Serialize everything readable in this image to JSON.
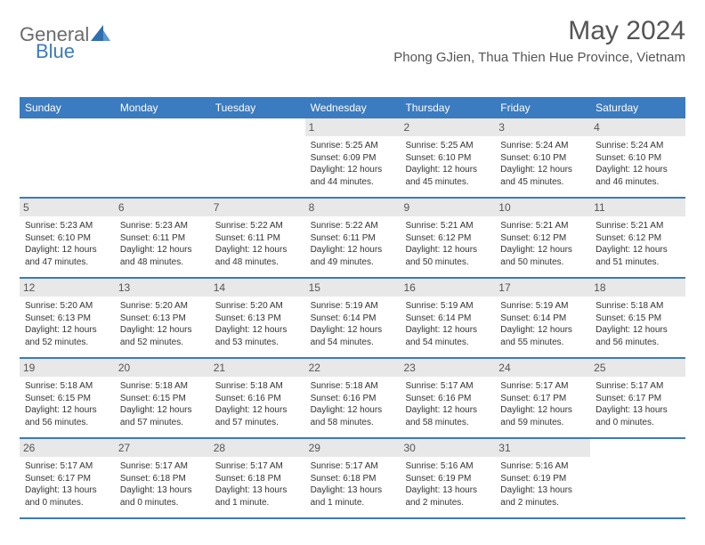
{
  "logo": {
    "part1": "General",
    "part2": "Blue"
  },
  "title": "May 2024",
  "location": "Phong GJien, Thua Thien Hue Province, Vietnam",
  "colors": {
    "header_bg": "#3b7bbf",
    "header_text": "#ffffff",
    "daynum_bg": "#e8e8e8",
    "body_text": "#333333",
    "logo_gray": "#6b6b6b",
    "logo_blue": "#3b7bbf"
  },
  "day_headers": [
    "Sunday",
    "Monday",
    "Tuesday",
    "Wednesday",
    "Thursday",
    "Friday",
    "Saturday"
  ],
  "weeks": [
    [
      {
        "blank": true
      },
      {
        "blank": true
      },
      {
        "blank": true
      },
      {
        "n": "1",
        "sunrise": "Sunrise: 5:25 AM",
        "sunset": "Sunset: 6:09 PM",
        "d1": "Daylight: 12 hours",
        "d2": "and 44 minutes."
      },
      {
        "n": "2",
        "sunrise": "Sunrise: 5:25 AM",
        "sunset": "Sunset: 6:10 PM",
        "d1": "Daylight: 12 hours",
        "d2": "and 45 minutes."
      },
      {
        "n": "3",
        "sunrise": "Sunrise: 5:24 AM",
        "sunset": "Sunset: 6:10 PM",
        "d1": "Daylight: 12 hours",
        "d2": "and 45 minutes."
      },
      {
        "n": "4",
        "sunrise": "Sunrise: 5:24 AM",
        "sunset": "Sunset: 6:10 PM",
        "d1": "Daylight: 12 hours",
        "d2": "and 46 minutes."
      }
    ],
    [
      {
        "n": "5",
        "sunrise": "Sunrise: 5:23 AM",
        "sunset": "Sunset: 6:10 PM",
        "d1": "Daylight: 12 hours",
        "d2": "and 47 minutes."
      },
      {
        "n": "6",
        "sunrise": "Sunrise: 5:23 AM",
        "sunset": "Sunset: 6:11 PM",
        "d1": "Daylight: 12 hours",
        "d2": "and 48 minutes."
      },
      {
        "n": "7",
        "sunrise": "Sunrise: 5:22 AM",
        "sunset": "Sunset: 6:11 PM",
        "d1": "Daylight: 12 hours",
        "d2": "and 48 minutes."
      },
      {
        "n": "8",
        "sunrise": "Sunrise: 5:22 AM",
        "sunset": "Sunset: 6:11 PM",
        "d1": "Daylight: 12 hours",
        "d2": "and 49 minutes."
      },
      {
        "n": "9",
        "sunrise": "Sunrise: 5:21 AM",
        "sunset": "Sunset: 6:12 PM",
        "d1": "Daylight: 12 hours",
        "d2": "and 50 minutes."
      },
      {
        "n": "10",
        "sunrise": "Sunrise: 5:21 AM",
        "sunset": "Sunset: 6:12 PM",
        "d1": "Daylight: 12 hours",
        "d2": "and 50 minutes."
      },
      {
        "n": "11",
        "sunrise": "Sunrise: 5:21 AM",
        "sunset": "Sunset: 6:12 PM",
        "d1": "Daylight: 12 hours",
        "d2": "and 51 minutes."
      }
    ],
    [
      {
        "n": "12",
        "sunrise": "Sunrise: 5:20 AM",
        "sunset": "Sunset: 6:13 PM",
        "d1": "Daylight: 12 hours",
        "d2": "and 52 minutes."
      },
      {
        "n": "13",
        "sunrise": "Sunrise: 5:20 AM",
        "sunset": "Sunset: 6:13 PM",
        "d1": "Daylight: 12 hours",
        "d2": "and 52 minutes."
      },
      {
        "n": "14",
        "sunrise": "Sunrise: 5:20 AM",
        "sunset": "Sunset: 6:13 PM",
        "d1": "Daylight: 12 hours",
        "d2": "and 53 minutes."
      },
      {
        "n": "15",
        "sunrise": "Sunrise: 5:19 AM",
        "sunset": "Sunset: 6:14 PM",
        "d1": "Daylight: 12 hours",
        "d2": "and 54 minutes."
      },
      {
        "n": "16",
        "sunrise": "Sunrise: 5:19 AM",
        "sunset": "Sunset: 6:14 PM",
        "d1": "Daylight: 12 hours",
        "d2": "and 54 minutes."
      },
      {
        "n": "17",
        "sunrise": "Sunrise: 5:19 AM",
        "sunset": "Sunset: 6:14 PM",
        "d1": "Daylight: 12 hours",
        "d2": "and 55 minutes."
      },
      {
        "n": "18",
        "sunrise": "Sunrise: 5:18 AM",
        "sunset": "Sunset: 6:15 PM",
        "d1": "Daylight: 12 hours",
        "d2": "and 56 minutes."
      }
    ],
    [
      {
        "n": "19",
        "sunrise": "Sunrise: 5:18 AM",
        "sunset": "Sunset: 6:15 PM",
        "d1": "Daylight: 12 hours",
        "d2": "and 56 minutes."
      },
      {
        "n": "20",
        "sunrise": "Sunrise: 5:18 AM",
        "sunset": "Sunset: 6:15 PM",
        "d1": "Daylight: 12 hours",
        "d2": "and 57 minutes."
      },
      {
        "n": "21",
        "sunrise": "Sunrise: 5:18 AM",
        "sunset": "Sunset: 6:16 PM",
        "d1": "Daylight: 12 hours",
        "d2": "and 57 minutes."
      },
      {
        "n": "22",
        "sunrise": "Sunrise: 5:18 AM",
        "sunset": "Sunset: 6:16 PM",
        "d1": "Daylight: 12 hours",
        "d2": "and 58 minutes."
      },
      {
        "n": "23",
        "sunrise": "Sunrise: 5:17 AM",
        "sunset": "Sunset: 6:16 PM",
        "d1": "Daylight: 12 hours",
        "d2": "and 58 minutes."
      },
      {
        "n": "24",
        "sunrise": "Sunrise: 5:17 AM",
        "sunset": "Sunset: 6:17 PM",
        "d1": "Daylight: 12 hours",
        "d2": "and 59 minutes."
      },
      {
        "n": "25",
        "sunrise": "Sunrise: 5:17 AM",
        "sunset": "Sunset: 6:17 PM",
        "d1": "Daylight: 13 hours",
        "d2": "and 0 minutes."
      }
    ],
    [
      {
        "n": "26",
        "sunrise": "Sunrise: 5:17 AM",
        "sunset": "Sunset: 6:17 PM",
        "d1": "Daylight: 13 hours",
        "d2": "and 0 minutes."
      },
      {
        "n": "27",
        "sunrise": "Sunrise: 5:17 AM",
        "sunset": "Sunset: 6:18 PM",
        "d1": "Daylight: 13 hours",
        "d2": "and 0 minutes."
      },
      {
        "n": "28",
        "sunrise": "Sunrise: 5:17 AM",
        "sunset": "Sunset: 6:18 PM",
        "d1": "Daylight: 13 hours",
        "d2": "and 1 minute."
      },
      {
        "n": "29",
        "sunrise": "Sunrise: 5:17 AM",
        "sunset": "Sunset: 6:18 PM",
        "d1": "Daylight: 13 hours",
        "d2": "and 1 minute."
      },
      {
        "n": "30",
        "sunrise": "Sunrise: 5:16 AM",
        "sunset": "Sunset: 6:19 PM",
        "d1": "Daylight: 13 hours",
        "d2": "and 2 minutes."
      },
      {
        "n": "31",
        "sunrise": "Sunrise: 5:16 AM",
        "sunset": "Sunset: 6:19 PM",
        "d1": "Daylight: 13 hours",
        "d2": "and 2 minutes."
      },
      {
        "blank": true
      }
    ]
  ]
}
